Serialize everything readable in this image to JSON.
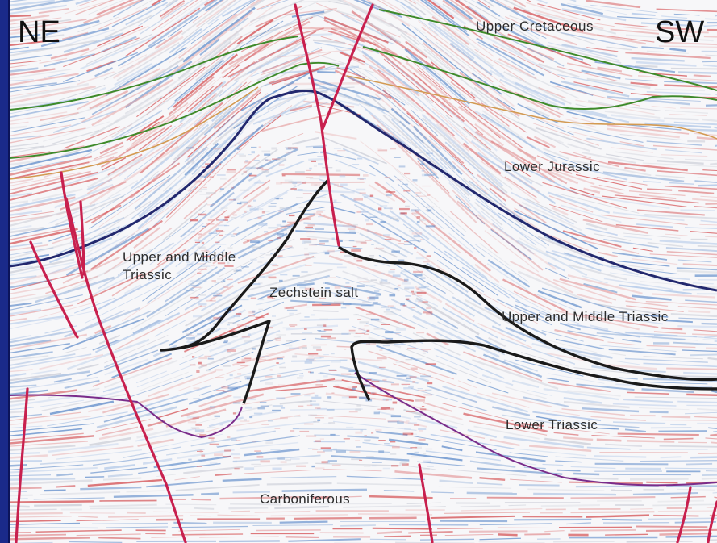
{
  "orientation": {
    "left": "NE",
    "right": "SW"
  },
  "units": [
    "Upper Cretaceous",
    "Lower Jurassic",
    "Upper and Middle\nTriassic",
    "Zechstein salt",
    "Upper and Middle Triassic",
    "Lower Triassic",
    "Carboniferous"
  ],
  "colors": {
    "fault": "#c8204e",
    "salt_outline": "#1a1a1a",
    "horizon_green": "#3e8a2a",
    "horizon_orange": "#d39a52",
    "horizon_navy": "#22286e",
    "horizon_purple": "#7a2c8a",
    "reflector_red": "#d2474a",
    "reflector_blue": "#5a88c8",
    "frame": "#1a2a8a"
  }
}
